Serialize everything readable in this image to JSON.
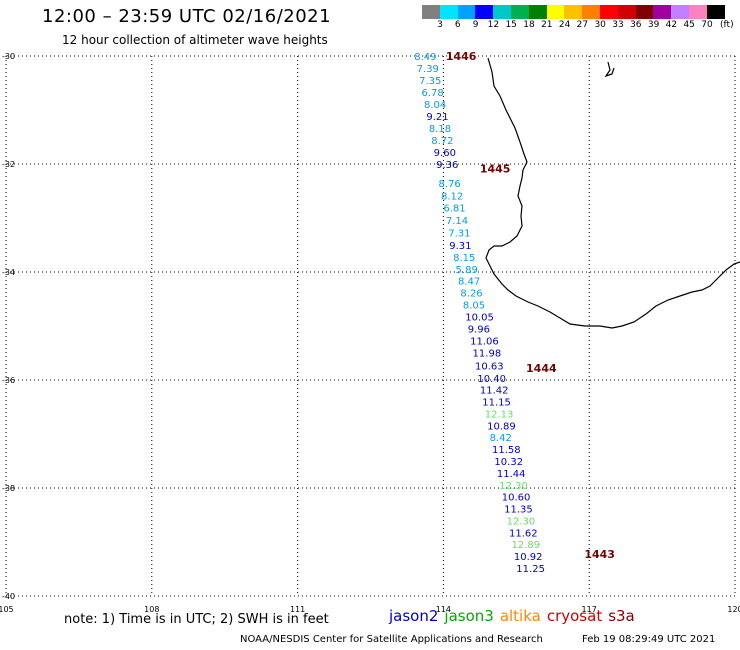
{
  "header": {
    "title": "12:00 – 23:59 UTC 02/16/2021",
    "subtitle": "12 hour collection of altimeter wave heights"
  },
  "legend": {
    "levels": [
      "3",
      "6",
      "9",
      "12",
      "15",
      "18",
      "21",
      "24",
      "27",
      "30",
      "33",
      "36",
      "39",
      "42",
      "45",
      "70"
    ],
    "unit": "(ft)",
    "colors": [
      "#808080",
      "#00e5ff",
      "#00a0ff",
      "#0000ff",
      "#00c8c8",
      "#00b050",
      "#008000",
      "#ffff00",
      "#ffc000",
      "#ff8000",
      "#ff0000",
      "#d00000",
      "#800000",
      "#a000a0",
      "#c080ff",
      "#ff80c0",
      "#000000"
    ]
  },
  "axes": {
    "lon_ticks": [
      "105",
      "108",
      "111",
      "114",
      "117",
      "120"
    ],
    "lat_ticks": [
      "-30",
      "-32",
      "-34",
      "-36",
      "-38",
      "-40"
    ]
  },
  "map": {
    "lon_range": [
      105,
      120
    ],
    "lat_range": [
      -40,
      -30
    ],
    "grid": "dotted"
  },
  "pass_labels": [
    {
      "text": "1446",
      "lon": 114.05,
      "lat": -30.0
    },
    {
      "text": "1445",
      "lon": 114.75,
      "lat": -32.08
    },
    {
      "text": "1444",
      "lon": 115.7,
      "lat": -35.78
    },
    {
      "text": "1443",
      "lon": 116.9,
      "lat": -39.22
    }
  ],
  "readings": [
    {
      "v": "8.49",
      "lat": -30.0,
      "lon": 113.4,
      "sat": "jason2",
      "c": "#00a0e6"
    },
    {
      "v": "7.39",
      "lat": -30.22,
      "lon": 113.45,
      "sat": "jason2",
      "c": "#00a0e6"
    },
    {
      "v": "7.35",
      "lat": -30.44,
      "lon": 113.5,
      "sat": "jason2",
      "c": "#00a0e6"
    },
    {
      "v": "6.78",
      "lat": -30.67,
      "lon": 113.55,
      "sat": "jason2",
      "c": "#00a0e6"
    },
    {
      "v": "8.04",
      "lat": -30.89,
      "lon": 113.6,
      "sat": "jason2",
      "c": "#00a0e6"
    },
    {
      "v": "9.21",
      "lat": -31.11,
      "lon": 113.65,
      "sat": "jason2",
      "c": "#0000c8"
    },
    {
      "v": "8.18",
      "lat": -31.33,
      "lon": 113.7,
      "sat": "jason2",
      "c": "#00a0e6"
    },
    {
      "v": "8.72",
      "lat": -31.56,
      "lon": 113.75,
      "sat": "jason2",
      "c": "#00a0e6"
    },
    {
      "v": "9.60",
      "lat": -31.78,
      "lon": 113.8,
      "sat": "jason2",
      "c": "#0000c8"
    },
    {
      "v": "9.36",
      "lat": -32.0,
      "lon": 113.85,
      "sat": "jason2",
      "c": "#0000c8"
    },
    {
      "v": "8.76",
      "lat": -32.35,
      "lon": 113.9,
      "sat": "jason2",
      "c": "#00a0e6"
    },
    {
      "v": "8.12",
      "lat": -32.58,
      "lon": 113.95,
      "sat": "jason2",
      "c": "#00a0e6"
    },
    {
      "v": "6.81",
      "lat": -32.81,
      "lon": 114.0,
      "sat": "jason2",
      "c": "#00a0e6"
    },
    {
      "v": "7.14",
      "lat": -33.04,
      "lon": 114.05,
      "sat": "jason2",
      "c": "#00a0e6"
    },
    {
      "v": "7.31",
      "lat": -33.27,
      "lon": 114.1,
      "sat": "jason2",
      "c": "#00a0e6"
    },
    {
      "v": "9.31",
      "lat": -33.5,
      "lon": 114.12,
      "sat": "jason2",
      "c": "#0000c8"
    },
    {
      "v": "8.15",
      "lat": -33.72,
      "lon": 114.2,
      "sat": "jason2",
      "c": "#00a0e6"
    },
    {
      "v": "5.89",
      "lat": -33.94,
      "lon": 114.25,
      "sat": "jason2",
      "c": "#00a0e6"
    },
    {
      "v": "8.47",
      "lat": -34.16,
      "lon": 114.3,
      "sat": "jason2",
      "c": "#00a0e6"
    },
    {
      "v": "8.26",
      "lat": -34.38,
      "lon": 114.35,
      "sat": "jason2",
      "c": "#00a0e6"
    },
    {
      "v": "8.05",
      "lat": -34.6,
      "lon": 114.4,
      "sat": "jason2",
      "c": "#00a0e6"
    },
    {
      "v": "10.05",
      "lat": -34.82,
      "lon": 114.45,
      "sat": "jason2",
      "c": "#0000c8"
    },
    {
      "v": "9.96",
      "lat": -35.05,
      "lon": 114.5,
      "sat": "jason2",
      "c": "#0000c8"
    },
    {
      "v": "11.06",
      "lat": -35.27,
      "lon": 114.55,
      "sat": "jason2",
      "c": "#0000c8"
    },
    {
      "v": "11.98",
      "lat": -35.49,
      "lon": 114.6,
      "sat": "jason2",
      "c": "#0000c8"
    },
    {
      "v": "10.63",
      "lat": -35.73,
      "lon": 114.65,
      "sat": "jason2",
      "c": "#0000c8"
    },
    {
      "v": "10.40",
      "lat": -35.96,
      "lon": 114.7,
      "sat": "jason2",
      "c": "#0000c8"
    },
    {
      "v": "11.42",
      "lat": -36.18,
      "lon": 114.75,
      "sat": "jason2",
      "c": "#0000c8"
    },
    {
      "v": "11.15",
      "lat": -36.4,
      "lon": 114.8,
      "sat": "jason2",
      "c": "#0000c8"
    },
    {
      "v": "12.13",
      "lat": -36.62,
      "lon": 114.85,
      "sat": "jason2",
      "c": "#66e066"
    },
    {
      "v": "10.89",
      "lat": -36.84,
      "lon": 114.9,
      "sat": "jason2",
      "c": "#0000c8"
    },
    {
      "v": "8.42",
      "lat": -37.06,
      "lon": 114.95,
      "sat": "jason2",
      "c": "#00a0e6"
    },
    {
      "v": "11.58",
      "lat": -37.28,
      "lon": 115.0,
      "sat": "jason2",
      "c": "#0000c8"
    },
    {
      "v": "10.32",
      "lat": -37.5,
      "lon": 115.05,
      "sat": "jason2",
      "c": "#0000c8"
    },
    {
      "v": "11.44",
      "lat": -37.72,
      "lon": 115.1,
      "sat": "jason2",
      "c": "#0000c8"
    },
    {
      "v": "12.30",
      "lat": -37.94,
      "lon": 115.15,
      "sat": "jason2",
      "c": "#66e066"
    },
    {
      "v": "10.60",
      "lat": -38.16,
      "lon": 115.2,
      "sat": "jason2",
      "c": "#0000c8"
    },
    {
      "v": "11.35",
      "lat": -38.38,
      "lon": 115.25,
      "sat": "jason2",
      "c": "#0000c8"
    },
    {
      "v": "12.30",
      "lat": -38.6,
      "lon": 115.3,
      "sat": "jason2",
      "c": "#66e066"
    },
    {
      "v": "11.62",
      "lat": -38.82,
      "lon": 115.35,
      "sat": "jason2",
      "c": "#0000c8"
    },
    {
      "v": "12.89",
      "lat": -39.04,
      "lon": 115.4,
      "sat": "jason2",
      "c": "#66e066"
    },
    {
      "v": "10.92",
      "lat": -39.26,
      "lon": 115.45,
      "sat": "jason2",
      "c": "#0000c8"
    },
    {
      "v": "11.25",
      "lat": -39.48,
      "lon": 115.5,
      "sat": "jason2",
      "c": "#0000c8"
    }
  ],
  "footer": {
    "note": "note:  1) Time is in UTC;  2) SWH is in feet",
    "satellites": [
      {
        "name": "jason2",
        "color": "#0000cc"
      },
      {
        "name": "jason3",
        "color": "#00aa00"
      },
      {
        "name": "altika",
        "color": "#ff8800"
      },
      {
        "name": "cryosat",
        "color": "#cc0000"
      },
      {
        "name": "s3a",
        "color": "#880000"
      }
    ],
    "credit": "NOAA/NESDIS Center for Satellite Applications and Research",
    "generated": "Feb 19 08:29:49 UTC 2021"
  }
}
